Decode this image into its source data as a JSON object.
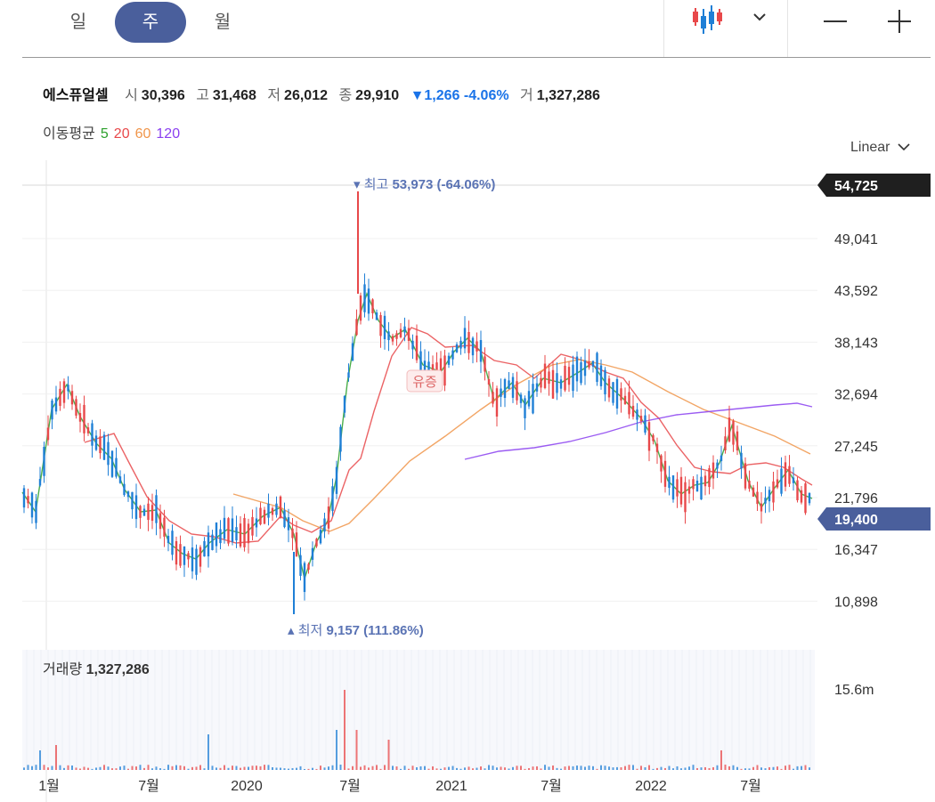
{
  "tabs": [
    {
      "label": "일",
      "active": false
    },
    {
      "label": "주",
      "active": true
    },
    {
      "label": "월",
      "active": false
    }
  ],
  "toolbar": {
    "chart_type_icon": "candlestick-icon",
    "dropdown_icon": "chevron-down-icon",
    "zoom_out_icon": "minus-icon",
    "zoom_in_icon": "plus-icon"
  },
  "stock": {
    "name": "에스퓨얼셀",
    "open_label": "시",
    "open": "30,396",
    "high_label": "고",
    "high": "31,468",
    "low_label": "저",
    "low": "26,012",
    "close_label": "종",
    "close": "29,910",
    "change": "▼1,266 -4.06%",
    "volume_label": "거",
    "volume": "1,327,286"
  },
  "ma": {
    "label": "이동평균",
    "periods": [
      "5",
      "20",
      "60",
      "120"
    ],
    "colors": [
      "#2ca02c",
      "#e8484a",
      "#f0954a",
      "#8a3ff0"
    ]
  },
  "scale_label": "Linear",
  "colors": {
    "up": "#e8484a",
    "down": "#1f7fd6",
    "badge_max": "#1f1f1f",
    "badge_current": "#4a5f9c",
    "annotation": "#5a73b4"
  },
  "chart_data": {
    "type": "candlestick",
    "interval": "weekly",
    "y_ticks": [
      "49,041",
      "43,592",
      "38,143",
      "32,694",
      "27,245",
      "21,796",
      "16,347",
      "10,898"
    ],
    "y_tick_values": [
      49041,
      43592,
      38143,
      32694,
      27245,
      21796,
      16347,
      10898
    ],
    "ylim": [
      8000,
      55000
    ],
    "max_price_badge": "54,725",
    "current_price_badge": "19,400",
    "max_annotation": {
      "label": "최고",
      "value": "53,973",
      "pct": "(-64.06%)"
    },
    "min_annotation": {
      "label": "최저",
      "value": "9,157",
      "pct": "(111.86%)"
    },
    "event_marker": "유증",
    "x_ticks": [
      "1월",
      "7월",
      "2020",
      "7월",
      "2021",
      "7월",
      "2022",
      "7월"
    ],
    "volume_label": "거래량",
    "volume_value": "1,327,286",
    "volume_tick": "15.6m",
    "ma_curves": {
      "ma5": [
        [
          25,
          553
        ],
        [
          40,
          575
        ],
        [
          58,
          460
        ],
        [
          75,
          432
        ],
        [
          90,
          468
        ],
        [
          108,
          498
        ],
        [
          125,
          515
        ],
        [
          140,
          550
        ],
        [
          158,
          575
        ],
        [
          175,
          573
        ],
        [
          190,
          610
        ],
        [
          205,
          622
        ],
        [
          220,
          628
        ],
        [
          235,
          610
        ],
        [
          255,
          595
        ],
        [
          275,
          600
        ],
        [
          295,
          580
        ],
        [
          315,
          570
        ],
        [
          330,
          600
        ],
        [
          342,
          650
        ],
        [
          355,
          610
        ],
        [
          368,
          585
        ],
        [
          378,
          535
        ],
        [
          390,
          430
        ],
        [
          402,
          360
        ],
        [
          412,
          330
        ],
        [
          425,
          360
        ],
        [
          440,
          380
        ],
        [
          455,
          370
        ],
        [
          475,
          410
        ],
        [
          495,
          418
        ],
        [
          510,
          395
        ],
        [
          525,
          380
        ],
        [
          540,
          395
        ],
        [
          555,
          450
        ],
        [
          575,
          430
        ],
        [
          590,
          455
        ],
        [
          610,
          425
        ],
        [
          630,
          430
        ],
        [
          650,
          418
        ],
        [
          665,
          408
        ],
        [
          680,
          430
        ],
        [
          700,
          448
        ],
        [
          720,
          470
        ],
        [
          735,
          495
        ],
        [
          750,
          540
        ],
        [
          765,
          555
        ],
        [
          780,
          545
        ],
        [
          795,
          542
        ],
        [
          808,
          520
        ],
        [
          822,
          478
        ],
        [
          840,
          540
        ],
        [
          855,
          570
        ],
        [
          870,
          548
        ],
        [
          885,
          528
        ],
        [
          900,
          555
        ],
        [
          912,
          560
        ]
      ],
      "ma20": [
        [
          95,
          497
        ],
        [
          128,
          487
        ],
        [
          145,
          520
        ],
        [
          165,
          558
        ],
        [
          190,
          585
        ],
        [
          215,
          600
        ],
        [
          240,
          603
        ],
        [
          265,
          610
        ],
        [
          290,
          608
        ],
        [
          315,
          580
        ],
        [
          330,
          590
        ],
        [
          350,
          598
        ],
        [
          372,
          585
        ],
        [
          392,
          528
        ],
        [
          405,
          515
        ],
        [
          420,
          462
        ],
        [
          440,
          400
        ],
        [
          462,
          368
        ],
        [
          480,
          375
        ],
        [
          500,
          390
        ],
        [
          530,
          388
        ],
        [
          555,
          405
        ],
        [
          580,
          410
        ],
        [
          600,
          425
        ],
        [
          630,
          398
        ],
        [
          655,
          405
        ],
        [
          680,
          418
        ],
        [
          700,
          425
        ],
        [
          720,
          452
        ],
        [
          740,
          470
        ],
        [
          760,
          500
        ],
        [
          780,
          525
        ],
        [
          800,
          530
        ],
        [
          820,
          532
        ],
        [
          840,
          522
        ],
        [
          860,
          520
        ],
        [
          880,
          525
        ],
        [
          900,
          538
        ],
        [
          912,
          545
        ]
      ],
      "ma60": [
        [
          262,
          555
        ],
        [
          290,
          563
        ],
        [
          315,
          570
        ],
        [
          340,
          585
        ],
        [
          370,
          597
        ],
        [
          392,
          588
        ],
        [
          420,
          560
        ],
        [
          460,
          518
        ],
        [
          500,
          490
        ],
        [
          540,
          460
        ],
        [
          580,
          432
        ],
        [
          620,
          410
        ],
        [
          650,
          404
        ],
        [
          680,
          410
        ],
        [
          710,
          418
        ],
        [
          750,
          440
        ],
        [
          790,
          460
        ],
        [
          830,
          475
        ],
        [
          870,
          490
        ],
        [
          910,
          510
        ]
      ],
      "ma120": [
        [
          522,
          516
        ],
        [
          560,
          507
        ],
        [
          600,
          503
        ],
        [
          640,
          496
        ],
        [
          680,
          486
        ],
        [
          720,
          474
        ],
        [
          760,
          466
        ],
        [
          800,
          462
        ],
        [
          840,
          458
        ],
        [
          870,
          455
        ],
        [
          895,
          453
        ],
        [
          912,
          457
        ]
      ]
    }
  }
}
